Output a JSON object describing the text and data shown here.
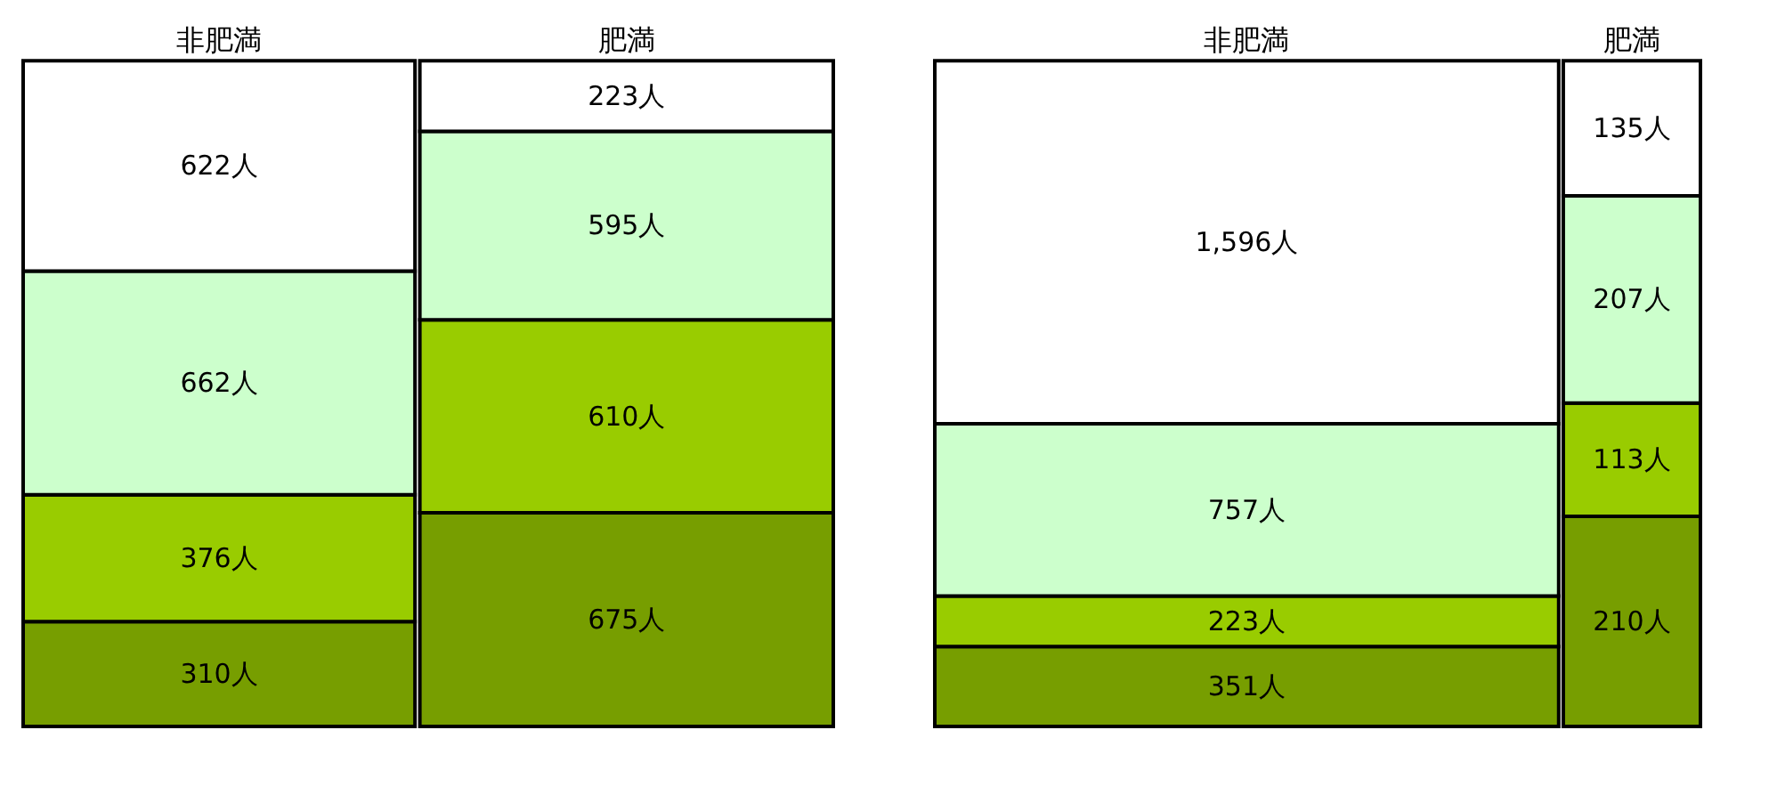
{
  "chart_data": [
    {
      "type": "other",
      "categories": [
        "非肥満",
        "肥満"
      ],
      "series": [
        {
          "color": "#779e00",
          "values": [
            310,
            675
          ],
          "value_labels": [
            "310人",
            "675人"
          ]
        },
        {
          "color": "#99cc00",
          "values": [
            376,
            610
          ],
          "value_labels": [
            "376人",
            "610人"
          ]
        },
        {
          "color": "#ccffcc",
          "values": [
            662,
            595
          ],
          "value_labels": [
            "662人",
            "595人"
          ]
        },
        {
          "color": "#ffffff",
          "values": [
            622,
            223
          ],
          "value_labels": [
            "622人",
            "223人"
          ]
        }
      ]
    },
    {
      "type": "other",
      "categories": [
        "非肥満",
        "肥満"
      ],
      "series": [
        {
          "color": "#779e00",
          "values": [
            351,
            210
          ],
          "value_labels": [
            "351人",
            "210人"
          ]
        },
        {
          "color": "#99cc00",
          "values": [
            223,
            113
          ],
          "value_labels": [
            "223人",
            "113人"
          ]
        },
        {
          "color": "#ccffcc",
          "values": [
            757,
            207
          ],
          "value_labels": [
            "757人",
            "207人"
          ]
        },
        {
          "color": "#ffffff",
          "values": [
            1596,
            135
          ],
          "value_labels": [
            "1,596人",
            "135人"
          ]
        }
      ]
    }
  ]
}
